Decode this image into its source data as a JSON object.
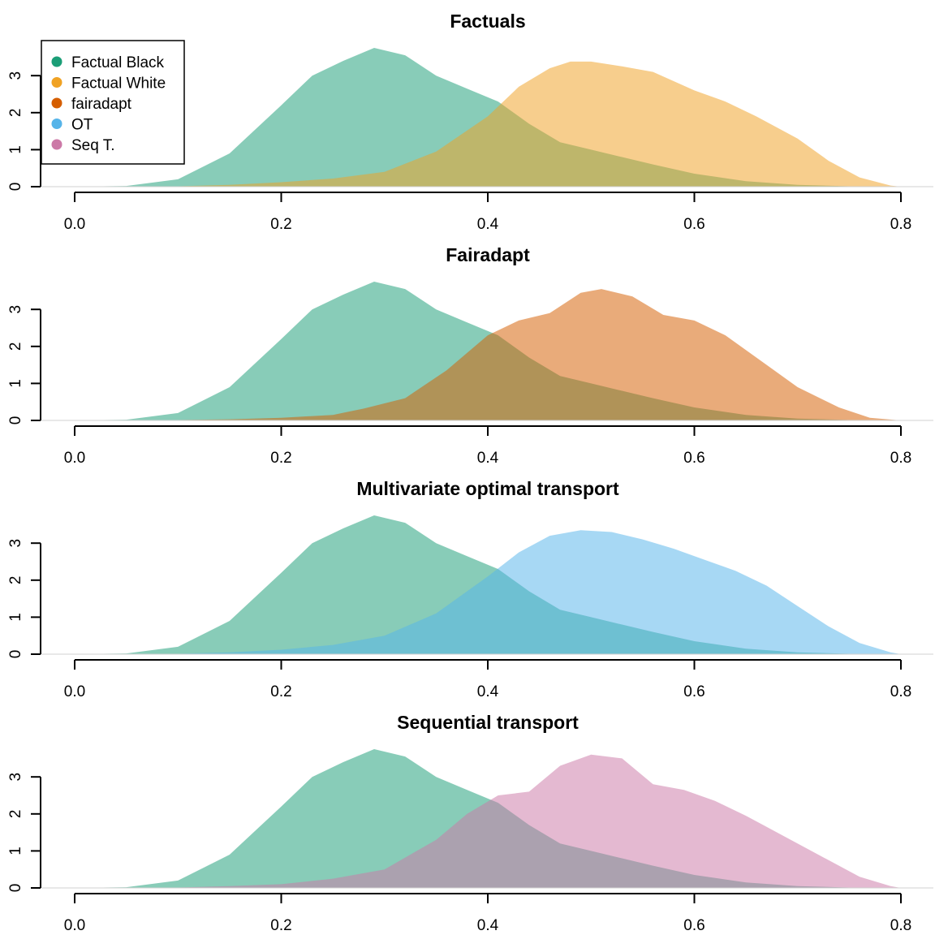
{
  "chart_data": [
    {
      "type": "area",
      "title": "Factuals",
      "xlim": [
        0.0,
        0.8
      ],
      "ylim": [
        0,
        3.75
      ],
      "x_ticks": [
        "0.0",
        "0.2",
        "0.4",
        "0.6",
        "0.8"
      ],
      "y_ticks": [
        "0",
        "1",
        "2",
        "3"
      ],
      "legend": "top-left",
      "series": [
        {
          "name": "Factual Black",
          "color": "#1b9e77",
          "x": [
            0.0,
            0.05,
            0.1,
            0.15,
            0.2,
            0.23,
            0.26,
            0.29,
            0.32,
            0.35,
            0.38,
            0.41,
            0.44,
            0.47,
            0.5,
            0.53,
            0.56,
            0.6,
            0.65,
            0.7,
            0.75,
            0.8
          ],
          "y": [
            0,
            0.02,
            0.2,
            0.9,
            2.2,
            3.0,
            3.4,
            3.75,
            3.55,
            3.0,
            2.65,
            2.3,
            1.7,
            1.2,
            1.0,
            0.8,
            0.6,
            0.35,
            0.15,
            0.05,
            0.01,
            0
          ]
        },
        {
          "name": "Factual White",
          "color": "#f0a224",
          "x": [
            0.0,
            0.1,
            0.15,
            0.2,
            0.25,
            0.3,
            0.35,
            0.4,
            0.43,
            0.46,
            0.48,
            0.5,
            0.53,
            0.56,
            0.6,
            0.63,
            0.66,
            0.7,
            0.73,
            0.76,
            0.79,
            0.8
          ],
          "y": [
            0,
            0.01,
            0.05,
            0.12,
            0.22,
            0.4,
            0.95,
            1.9,
            2.7,
            3.2,
            3.38,
            3.38,
            3.25,
            3.1,
            2.6,
            2.3,
            1.9,
            1.3,
            0.7,
            0.25,
            0.03,
            0
          ]
        }
      ]
    },
    {
      "type": "area",
      "title": "Fairadapt",
      "xlim": [
        0.0,
        0.8
      ],
      "ylim": [
        0,
        3.75
      ],
      "x_ticks": [
        "0.0",
        "0.2",
        "0.4",
        "0.6",
        "0.8"
      ],
      "y_ticks": [
        "0",
        "1",
        "2",
        "3"
      ],
      "series": [
        {
          "name": "Factual Black",
          "color": "#1b9e77",
          "x": [
            0.0,
            0.05,
            0.1,
            0.15,
            0.2,
            0.23,
            0.26,
            0.29,
            0.32,
            0.35,
            0.38,
            0.41,
            0.44,
            0.47,
            0.5,
            0.53,
            0.56,
            0.6,
            0.65,
            0.7,
            0.75,
            0.8
          ],
          "y": [
            0,
            0.02,
            0.2,
            0.9,
            2.2,
            3.0,
            3.4,
            3.75,
            3.55,
            3.0,
            2.65,
            2.3,
            1.7,
            1.2,
            1.0,
            0.8,
            0.6,
            0.35,
            0.15,
            0.05,
            0.01,
            0
          ]
        },
        {
          "name": "fairadapt",
          "color": "#d55e00",
          "x": [
            0.0,
            0.1,
            0.15,
            0.2,
            0.25,
            0.28,
            0.32,
            0.36,
            0.4,
            0.43,
            0.46,
            0.49,
            0.51,
            0.54,
            0.57,
            0.6,
            0.63,
            0.67,
            0.7,
            0.74,
            0.77,
            0.8
          ],
          "y": [
            0,
            0.01,
            0.03,
            0.07,
            0.15,
            0.32,
            0.6,
            1.35,
            2.3,
            2.7,
            2.9,
            3.45,
            3.55,
            3.35,
            2.85,
            2.7,
            2.3,
            1.5,
            0.9,
            0.35,
            0.07,
            0
          ]
        }
      ]
    },
    {
      "type": "area",
      "title": "Multivariate optimal transport",
      "xlim": [
        0.0,
        0.8
      ],
      "ylim": [
        0,
        3.75
      ],
      "x_ticks": [
        "0.0",
        "0.2",
        "0.4",
        "0.6",
        "0.8"
      ],
      "y_ticks": [
        "0",
        "1",
        "2",
        "3"
      ],
      "series": [
        {
          "name": "Factual Black",
          "color": "#1b9e77",
          "x": [
            0.0,
            0.05,
            0.1,
            0.15,
            0.2,
            0.23,
            0.26,
            0.29,
            0.32,
            0.35,
            0.38,
            0.41,
            0.44,
            0.47,
            0.5,
            0.53,
            0.56,
            0.6,
            0.65,
            0.7,
            0.75,
            0.8
          ],
          "y": [
            0,
            0.02,
            0.2,
            0.9,
            2.2,
            3.0,
            3.4,
            3.75,
            3.55,
            3.0,
            2.65,
            2.3,
            1.7,
            1.2,
            1.0,
            0.8,
            0.6,
            0.35,
            0.15,
            0.05,
            0.01,
            0
          ]
        },
        {
          "name": "OT",
          "color": "#56b4e9",
          "x": [
            0.0,
            0.1,
            0.15,
            0.2,
            0.25,
            0.3,
            0.35,
            0.4,
            0.43,
            0.46,
            0.49,
            0.52,
            0.55,
            0.58,
            0.61,
            0.64,
            0.67,
            0.7,
            0.73,
            0.76,
            0.79,
            0.8
          ],
          "y": [
            0,
            0.01,
            0.05,
            0.12,
            0.25,
            0.5,
            1.1,
            2.1,
            2.75,
            3.2,
            3.35,
            3.3,
            3.1,
            2.85,
            2.55,
            2.25,
            1.85,
            1.3,
            0.75,
            0.3,
            0.05,
            0
          ]
        }
      ]
    },
    {
      "type": "area",
      "title": "Sequential transport",
      "xlim": [
        0.0,
        0.8
      ],
      "ylim": [
        0,
        3.75
      ],
      "x_ticks": [
        "0.0",
        "0.2",
        "0.4",
        "0.6",
        "0.8"
      ],
      "y_ticks": [
        "0",
        "1",
        "2",
        "3"
      ],
      "series": [
        {
          "name": "Factual Black",
          "color": "#1b9e77",
          "x": [
            0.0,
            0.05,
            0.1,
            0.15,
            0.2,
            0.23,
            0.26,
            0.29,
            0.32,
            0.35,
            0.38,
            0.41,
            0.44,
            0.47,
            0.5,
            0.53,
            0.56,
            0.6,
            0.65,
            0.7,
            0.75,
            0.8
          ],
          "y": [
            0,
            0.02,
            0.2,
            0.9,
            2.2,
            3.0,
            3.4,
            3.75,
            3.55,
            3.0,
            2.65,
            2.3,
            1.7,
            1.2,
            1.0,
            0.8,
            0.6,
            0.35,
            0.15,
            0.05,
            0.01,
            0
          ]
        },
        {
          "name": "Seq T.",
          "color": "#cc79a7",
          "x": [
            0.0,
            0.1,
            0.15,
            0.2,
            0.25,
            0.3,
            0.35,
            0.38,
            0.41,
            0.44,
            0.47,
            0.5,
            0.53,
            0.56,
            0.59,
            0.62,
            0.65,
            0.68,
            0.72,
            0.76,
            0.79,
            0.8
          ],
          "y": [
            0,
            0.01,
            0.05,
            0.1,
            0.25,
            0.5,
            1.3,
            2.0,
            2.5,
            2.6,
            3.3,
            3.6,
            3.5,
            2.8,
            2.65,
            2.35,
            1.95,
            1.5,
            0.9,
            0.3,
            0.05,
            0
          ]
        }
      ]
    }
  ],
  "legend": {
    "items": [
      {
        "label": "Factual Black",
        "color": "#1b9e77"
      },
      {
        "label": "Factual White",
        "color": "#f0a224"
      },
      {
        "label": "fairadapt",
        "color": "#d55e00"
      },
      {
        "label": "OT",
        "color": "#56b4e9"
      },
      {
        "label": "Seq T.",
        "color": "#cc79a7"
      }
    ]
  }
}
